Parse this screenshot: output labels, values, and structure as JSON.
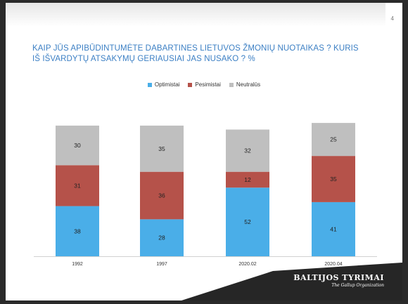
{
  "page": {
    "number": "4"
  },
  "title": "Kaip jūs apibūdintumėte dabartines Lietuvos žmonių nuotaikas ? Kuris iš išvardytų atsakymų geriausiai jas nusako ? %",
  "brand": {
    "name": "BALTIJOS TYRIMAI",
    "subtitle": "The Gallup Organization"
  },
  "colors": {
    "optimistai": "#4aaee8",
    "pesimistai": "#b5524a",
    "neutralus": "#bfbfbf",
    "title": "#3b7fc4",
    "footer": "#262626"
  },
  "chart_data": {
    "type": "bar",
    "stacked": true,
    "categories": [
      "1992",
      "1997",
      "2020.02",
      "2020.04"
    ],
    "series": [
      {
        "name": "Optimistai",
        "values": [
          38,
          28,
          52,
          41
        ]
      },
      {
        "name": "Pesimistai",
        "values": [
          31,
          36,
          12,
          35
        ]
      },
      {
        "name": "Neutralūs",
        "values": [
          30,
          35,
          32,
          25
        ]
      }
    ],
    "legend": "top-center",
    "grid": false
  }
}
